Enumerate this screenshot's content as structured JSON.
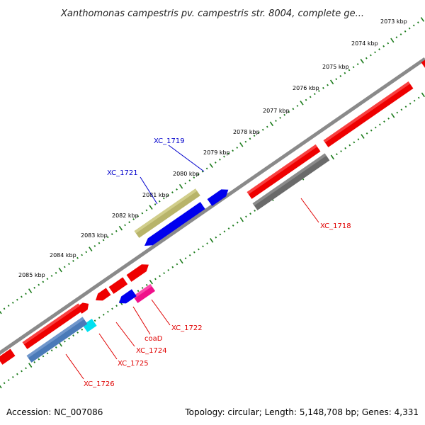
{
  "title": "Xanthomonas campestris pv. campestris str. 8004, complete ge...",
  "footer": {
    "accession": "Accession: NC_007086",
    "summary": "Topology: circular; Length: 5,148,708 bp; Genes: 4,331"
  },
  "kbp_labels": [
    "2073 kbp",
    "2074 kbp",
    "2075 kbp",
    "2076 kbp",
    "2077 kbp",
    "2078 kbp",
    "2079 kbp",
    "2080 kbp",
    "2081 kbp",
    "2082 kbp",
    "2083 kbp",
    "2084 kbp",
    "2085 kbp"
  ],
  "genes": {
    "xc_1718": "XC_1718",
    "xc_1719": "XC_1719",
    "xc_1721": "XC_1721",
    "xc_1722": "XC_1722",
    "coad": "coaD",
    "xc_1724": "XC_1724",
    "xc_1725": "XC_1725",
    "xc_1726": "XC_1726"
  },
  "colors": {
    "cds_red": "#ee0000",
    "cds_blue": "#0000ee",
    "olive": "#b8b46a",
    "gray": "#6a6a6a",
    "cyan": "#00e0f0",
    "steel": "#4a7ab8",
    "magenta": "#f0108a",
    "backbone": "#8a8a8a",
    "ticks": "#1a7a1a"
  }
}
